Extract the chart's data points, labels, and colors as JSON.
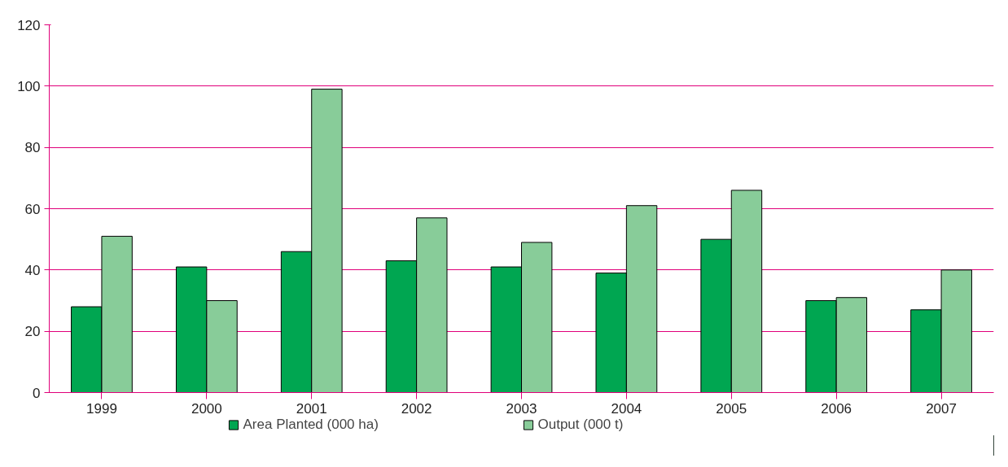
{
  "chart_data": {
    "type": "bar",
    "categories": [
      "1999",
      "2000",
      "2001",
      "2002",
      "2003",
      "2004",
      "2005",
      "2006",
      "2007"
    ],
    "series": [
      {
        "name": "Area Planted (000 ha)",
        "color": "#00a651",
        "values": [
          28,
          41,
          46,
          43,
          41,
          39,
          50,
          30,
          27
        ]
      },
      {
        "name": "Output (000 t)",
        "color": "#88cc99",
        "values": [
          51,
          30,
          99,
          57,
          49,
          61,
          66,
          31,
          40
        ]
      }
    ],
    "ylim": [
      0,
      120
    ],
    "yticks": [
      0,
      20,
      40,
      60,
      80,
      100,
      120
    ],
    "grid": "y",
    "legend": "bottom"
  }
}
